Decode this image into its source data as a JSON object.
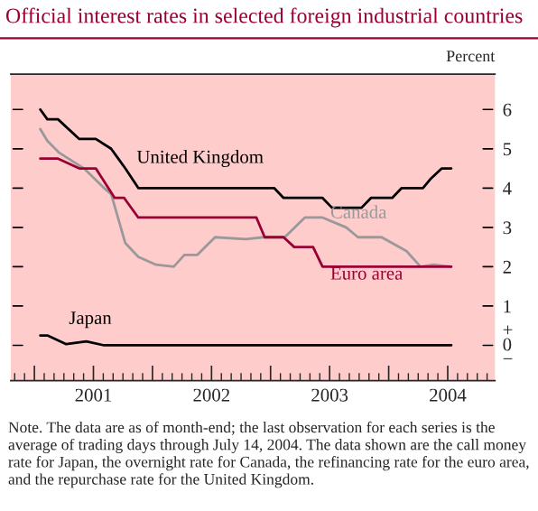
{
  "chart_data": {
    "type": "line",
    "title": "Official interest rates in selected foreign industrial countries",
    "ylabel": "Percent",
    "xlim": [
      2000.8,
      2004.9
    ],
    "ylim": [
      -0.9,
      6.9
    ],
    "xticks": [
      {
        "value": 2001,
        "label": null
      },
      {
        "value": 2001.5,
        "label": "2001"
      },
      {
        "value": 2002,
        "label": null
      },
      {
        "value": 2002.5,
        "label": "2002"
      },
      {
        "value": 2003,
        "label": null
      },
      {
        "value": 2003.5,
        "label": "2003"
      },
      {
        "value": 2004,
        "label": null
      },
      {
        "value": 2004.5,
        "label": "2004"
      }
    ],
    "yticks": [
      {
        "value": 0,
        "label": "+\n0\n−"
      },
      1,
      2,
      3,
      4,
      5,
      6
    ],
    "grid": false,
    "legend": false,
    "marker": "none",
    "line_style": "solid",
    "series": [
      {
        "name": "United Kingdom",
        "color": "#000000",
        "x": [
          2001.05,
          2001.11,
          2001.2,
          2001.38,
          2001.52,
          2001.65,
          2001.71,
          2001.77,
          2001.88,
          2003.03,
          2003.11,
          2003.44,
          2003.52,
          2003.77,
          2003.85,
          2004.03,
          2004.11,
          2004.29,
          2004.36,
          2004.45,
          2004.53
        ],
        "values": [
          6.0,
          5.75,
          5.75,
          5.25,
          5.25,
          5.0,
          4.75,
          4.5,
          4.0,
          4.0,
          3.75,
          3.75,
          3.5,
          3.5,
          3.75,
          3.75,
          4.0,
          4.0,
          4.25,
          4.5,
          4.5
        ]
      },
      {
        "name": "Canada",
        "color": "#999999",
        "x": [
          2001.05,
          2001.11,
          2001.21,
          2001.42,
          2001.59,
          2001.65,
          2001.77,
          2001.88,
          2002.03,
          2002.18,
          2002.27,
          2002.38,
          2002.53,
          2002.79,
          2002.94,
          2003.12,
          2003.29,
          2003.44,
          2003.64,
          2003.74,
          2003.94,
          2004.15,
          2004.27,
          2004.38,
          2004.53
        ],
        "values": [
          5.5,
          5.2,
          4.9,
          4.5,
          4.0,
          3.85,
          2.6,
          2.25,
          2.05,
          2.0,
          2.3,
          2.3,
          2.75,
          2.7,
          2.75,
          2.75,
          3.25,
          3.25,
          3.0,
          2.75,
          2.75,
          2.4,
          2.0,
          2.05,
          2.0
        ]
      },
      {
        "name": "Euro area",
        "color": "#990033",
        "x": [
          2001.05,
          2001.2,
          2001.38,
          2001.52,
          2001.68,
          2001.76,
          2001.88,
          2002.88,
          2002.95,
          2003.11,
          2003.2,
          2003.36,
          2003.44,
          2004.53
        ],
        "values": [
          4.75,
          4.75,
          4.5,
          4.5,
          3.75,
          3.75,
          3.25,
          3.25,
          2.75,
          2.75,
          2.5,
          2.5,
          2.0,
          2.0
        ]
      },
      {
        "name": "Japan",
        "color": "#000000",
        "x": [
          2001.05,
          2001.11,
          2001.27,
          2001.44,
          2001.59,
          2004.53
        ],
        "values": [
          0.25,
          0.25,
          0.03,
          0.1,
          0.0,
          0.0
        ]
      }
    ],
    "annotations": [
      "Note. The data are as of month-end; the last observation for each series is the average of trading days through July 14, 2004. The data shown are the call money rate for Japan, the overnight rate for Canada, the refinancing rate for the euro area, and the repurchase rate for the United Kingdom."
    ]
  }
}
